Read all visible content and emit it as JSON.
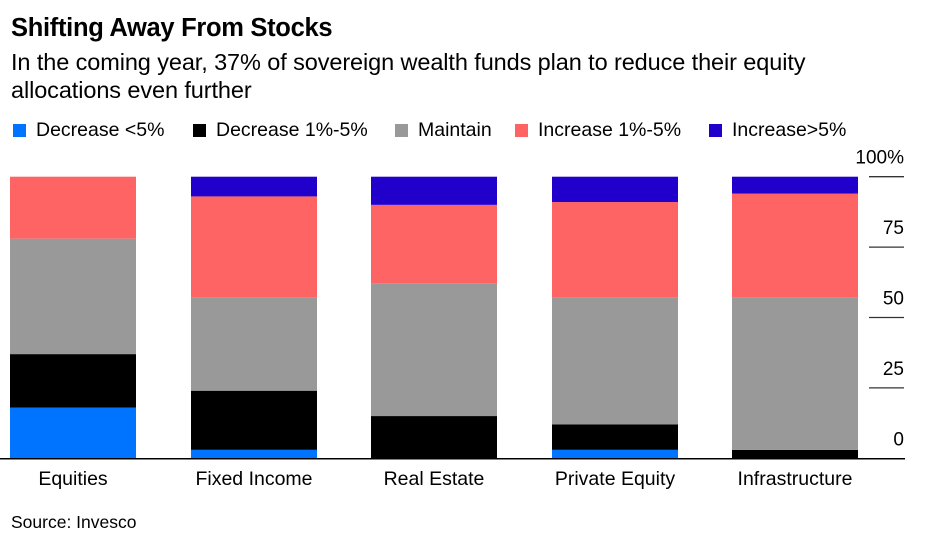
{
  "title": "Shifting Away From Stocks",
  "subtitle": "In the coming year, 37% of sovereign wealth funds plan to reduce their equity allocations even further",
  "source": "Source: Invesco",
  "legend": [
    {
      "label": "Decrease <5%",
      "color": "#0073FF"
    },
    {
      "label": "Decrease 1%-5%",
      "color": "#000000"
    },
    {
      "label": "Maintain",
      "color": "#999999"
    },
    {
      "label": "Increase 1%-5%",
      "color": "#FF6464"
    },
    {
      "label": "Increase>5%",
      "color": "#2200CC"
    }
  ],
  "chart_data": {
    "type": "bar",
    "stacked": true,
    "title": "Shifting Away From Stocks",
    "subtitle": "In the coming year, 37% of sovereign wealth funds plan to reduce their equity allocations even further",
    "xlabel": "",
    "ylabel": "",
    "categories": [
      "Equities",
      "Fixed Income",
      "Real Estate",
      "Private Equity",
      "Infrastructure"
    ],
    "series": [
      {
        "name": "Decrease <5%",
        "color": "#0073FF",
        "values": [
          18,
          3,
          0,
          3,
          0
        ]
      },
      {
        "name": "Decrease 1%-5%",
        "color": "#000000",
        "values": [
          19,
          21,
          15,
          9,
          3
        ]
      },
      {
        "name": "Maintain",
        "color": "#999999",
        "values": [
          41,
          33,
          47,
          45,
          54
        ]
      },
      {
        "name": "Increase 1%-5%",
        "color": "#FF6464",
        "values": [
          22,
          36,
          28,
          34,
          37
        ]
      },
      {
        "name": "Increase>5%",
        "color": "#2200CC",
        "values": [
          0,
          7,
          10,
          9,
          6
        ]
      }
    ],
    "ylim": [
      0,
      100
    ],
    "yticks": [
      0,
      25,
      50,
      75,
      100
    ],
    "ytick_labels": [
      "0",
      "25",
      "50",
      "75",
      "100%"
    ],
    "y_axis_side": "right",
    "grid": false,
    "legend_position": "top-left",
    "source": "Source: Invesco"
  }
}
